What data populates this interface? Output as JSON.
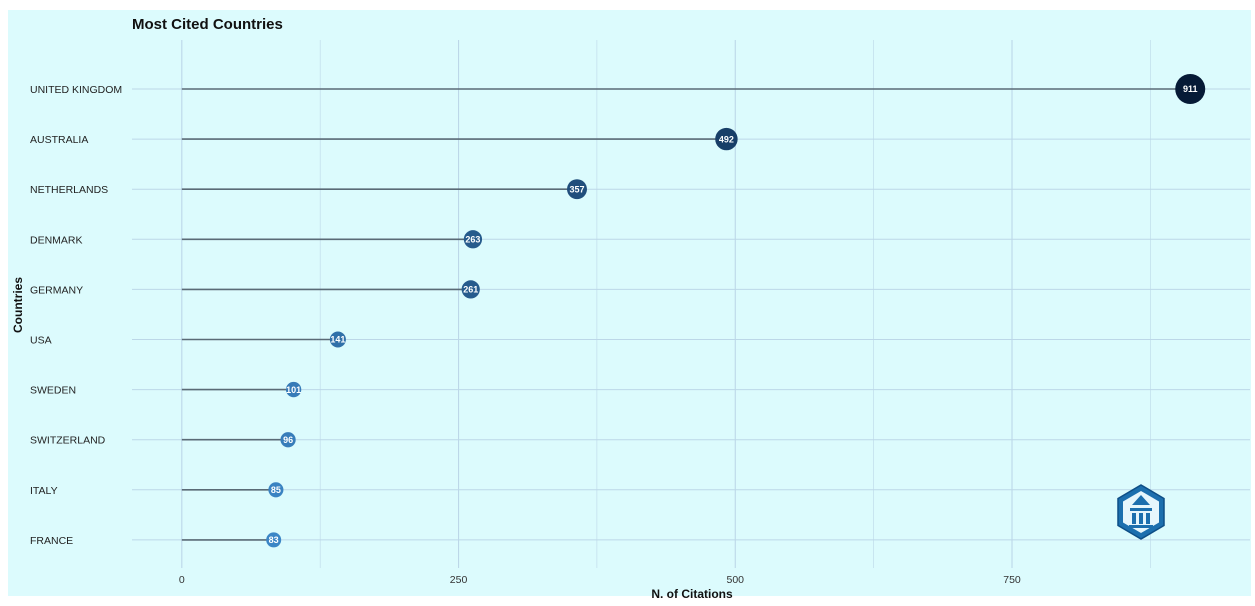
{
  "chart_data": {
    "type": "lollipop",
    "title": "Most Cited Countries",
    "xlabel": "N. of Citations",
    "ylabel": "Countries",
    "categories": [
      "UNITED KINGDOM",
      "AUSTRALIA",
      "NETHERLANDS",
      "DENMARK",
      "GERMANY",
      "USA",
      "SWEDEN",
      "SWITZERLAND",
      "ITALY",
      "FRANCE"
    ],
    "values": [
      911,
      492,
      357,
      263,
      261,
      141,
      101,
      96,
      85,
      83
    ],
    "labels": [
      "911",
      "492",
      "357",
      "263",
      "261",
      "141",
      "101",
      "96",
      "85",
      "83"
    ],
    "xlim": [
      -45,
      965
    ],
    "xticks": [
      0,
      250,
      500,
      750
    ],
    "grid": true,
    "legend": "none",
    "colors": {
      "background": "#dcfbfd",
      "grid": "#bcd7e8",
      "stem": "#5a6a76",
      "point_low": "#3b86c6",
      "point_high": "#061a36"
    },
    "logo_icon": "bibliometrix-logo-icon"
  }
}
